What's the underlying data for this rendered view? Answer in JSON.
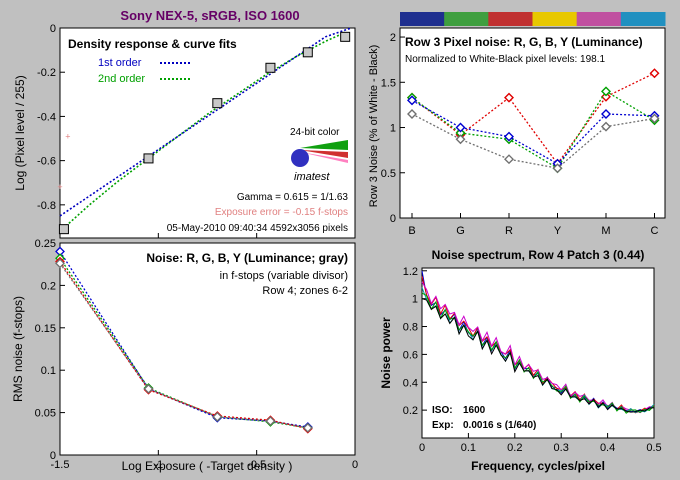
{
  "figure_title": "Sony NEX-5, sRGB, ISO 1600",
  "colors": {
    "background": "#c0c0c0",
    "plot_bg": "#ffffff",
    "title": "#660066",
    "red": "#e00000",
    "green": "#00a000",
    "blue": "#0000d0",
    "gray": "#707070",
    "pink": "#e08080",
    "magenta": "#cc00cc",
    "teal": "#00a0a0",
    "palette_bar": [
      "#1f2f8f",
      "#3f9f3f",
      "#c03030",
      "#e8c800",
      "#c050a0",
      "#2090c0"
    ]
  },
  "chart_data": [
    {
      "id": "density",
      "type": "scatter",
      "title": "Density response & curve fits",
      "ylabel": "Log (Pixel level / 255)",
      "xlim": [
        -1.5,
        0
      ],
      "ylim": [
        -0.95,
        0
      ],
      "yticks": [
        0,
        -0.2,
        -0.4,
        -0.6,
        -0.8
      ],
      "ytick_labels": [
        "0",
        "-0.2",
        "-0.4",
        "-0.6",
        "-0.8"
      ],
      "legend": [
        {
          "label": "1st order",
          "color": "#0000c0"
        },
        {
          "label": "2nd order",
          "color": "#00a000"
        }
      ],
      "fit_1st": {
        "x": [
          -1.5,
          -1.35,
          -1.2,
          -1.05,
          -0.9,
          -0.75,
          -0.6,
          -0.45,
          -0.3,
          -0.15,
          -0.02
        ],
        "y": [
          -0.85,
          -0.76,
          -0.67,
          -0.58,
          -0.49,
          -0.4,
          -0.31,
          -0.22,
          -0.13,
          -0.04,
          0.0
        ]
      },
      "fit_2nd": {
        "x": [
          -1.5,
          -1.35,
          -1.2,
          -1.05,
          -0.9,
          -0.75,
          -0.6,
          -0.45,
          -0.3,
          -0.15,
          -0.05
        ],
        "y": [
          -0.92,
          -0.8,
          -0.69,
          -0.59,
          -0.49,
          -0.39,
          -0.3,
          -0.21,
          -0.13,
          -0.06,
          -0.02
        ]
      },
      "points_x": [
        -1.48,
        -1.05,
        -0.7,
        -0.43,
        -0.24,
        -0.05
      ],
      "points_y": [
        -0.91,
        -0.59,
        -0.34,
        -0.18,
        -0.11,
        -0.04
      ],
      "pink_points_x": [
        -1.5,
        -1.46,
        -1.05,
        -0.7,
        -0.43,
        -0.24,
        -0.05
      ],
      "pink_points_y": [
        -0.72,
        -0.49,
        -0.6,
        -0.35,
        -0.18,
        -0.11,
        -0.03
      ],
      "badge_text": "24-bit color",
      "logo_text": "imatest",
      "gamma_text": "Gamma = 0.615 = 1/1.63",
      "exposure_text": "Exposure error = -0.15 f-stops",
      "date_text": "05-May-2010 09:40:34   4592x3056 pixels"
    },
    {
      "id": "row3",
      "type": "line",
      "title": "Row 3 Pixel noise: R, G, B, Y (Luminance)",
      "subtitle": "Normalized to White-Black pixel levels: 198.1",
      "ylabel": "Row 3 Noise (% of White - Black)",
      "categories": [
        "B",
        "G",
        "R",
        "Y",
        "M",
        "C"
      ],
      "ylim": [
        0,
        2.1
      ],
      "yticks": [
        0,
        0.5,
        1,
        1.5,
        2
      ],
      "ytick_labels": [
        "0",
        "0.5",
        "1",
        "1.5",
        "2"
      ],
      "series": [
        {
          "color": "#e00000",
          "values": [
            1.33,
            0.92,
            1.33,
            0.6,
            1.34,
            1.6
          ]
        },
        {
          "color": "#00a000",
          "values": [
            1.33,
            0.94,
            0.87,
            0.55,
            1.4,
            1.08
          ]
        },
        {
          "color": "#0000d0",
          "values": [
            1.3,
            1.0,
            0.9,
            0.6,
            1.15,
            1.13
          ]
        },
        {
          "color": "#707070",
          "values": [
            1.15,
            0.87,
            0.65,
            0.55,
            1.01,
            1.1
          ]
        }
      ]
    },
    {
      "id": "rmsnoise",
      "type": "line",
      "title": "Noise: R, G, B, Y (Luminance; gray)",
      "note1": "in f-stops (variable divisor)",
      "note2": "Row 4; zones 6-2",
      "ylabel": "RMS noise (f-stops)",
      "xlabel": "Log Exposure ( -Target density )",
      "xlim": [
        -1.5,
        0
      ],
      "ylim": [
        0,
        0.25
      ],
      "xticks": [
        -1.5,
        -1,
        -0.5,
        0
      ],
      "xtick_labels": [
        "-1.5",
        "-1",
        "-0.5",
        "0"
      ],
      "yticks": [
        0,
        0.05,
        0.1,
        0.15,
        0.2,
        0.25
      ],
      "ytick_labels": [
        "0",
        "0.05",
        "0.1",
        "0.15",
        "0.2",
        "0.25"
      ],
      "x": [
        -1.5,
        -1.05,
        -0.7,
        -0.43,
        -0.24
      ],
      "series": [
        {
          "color": "#0000d0",
          "values": [
            0.24,
            0.078,
            0.044,
            0.04,
            0.033
          ]
        },
        {
          "color": "#00a000",
          "values": [
            0.232,
            0.079,
            0.045,
            0.039,
            0.032
          ]
        },
        {
          "color": "#e00000",
          "values": [
            0.228,
            0.077,
            0.046,
            0.041,
            0.031
          ]
        },
        {
          "color": "#707070",
          "values": [
            0.226,
            0.078,
            0.045,
            0.04,
            0.032
          ]
        }
      ]
    },
    {
      "id": "spectrum",
      "type": "line",
      "title": "Noise spectrum, Row 4 Patch 3 (0.44)",
      "ylabel": "Noise power",
      "xlabel": "Frequency, cycles/pixel",
      "xlim": [
        0,
        0.5
      ],
      "ylim": [
        0,
        1.22
      ],
      "xticks": [
        0,
        0.1,
        0.2,
        0.3,
        0.4,
        0.5
      ],
      "xtick_labels": [
        "0",
        "0.1",
        "0.2",
        "0.3",
        "0.4",
        "0.5"
      ],
      "yticks": [
        0.2,
        0.4,
        0.6,
        0.8,
        1,
        1.2
      ],
      "ytick_labels": [
        "0.2",
        "0.4",
        "0.6",
        "0.8",
        "1",
        "1.2"
      ],
      "x": [
        0,
        0.01,
        0.02,
        0.03,
        0.04,
        0.05,
        0.06,
        0.07,
        0.08,
        0.09,
        0.1,
        0.11,
        0.12,
        0.13,
        0.14,
        0.15,
        0.16,
        0.17,
        0.18,
        0.19,
        0.2,
        0.21,
        0.22,
        0.23,
        0.24,
        0.25,
        0.26,
        0.27,
        0.28,
        0.29,
        0.3,
        0.31,
        0.32,
        0.33,
        0.34,
        0.35,
        0.36,
        0.37,
        0.38,
        0.39,
        0.4,
        0.41,
        0.42,
        0.43,
        0.44,
        0.45,
        0.46,
        0.47,
        0.48,
        0.49,
        0.5
      ],
      "base": [
        0.96,
        1.01,
        0.93,
        0.97,
        0.87,
        0.92,
        0.84,
        0.87,
        0.77,
        0.82,
        0.76,
        0.72,
        0.77,
        0.66,
        0.71,
        0.63,
        0.68,
        0.6,
        0.57,
        0.62,
        0.5,
        0.55,
        0.48,
        0.5,
        0.44,
        0.47,
        0.39,
        0.42,
        0.37,
        0.35,
        0.33,
        0.36,
        0.29,
        0.31,
        0.27,
        0.3,
        0.25,
        0.27,
        0.23,
        0.25,
        0.22,
        0.24,
        0.2,
        0.22,
        0.19,
        0.2,
        0.19,
        0.19,
        0.2,
        0.21,
        0.23
      ],
      "series": [
        {
          "color": "#0000d0",
          "offset": 0.01
        },
        {
          "color": "#e00000",
          "offset": 0.03
        },
        {
          "color": "#cc00cc",
          "offset": 0.05
        },
        {
          "color": "#00a0a0",
          "offset": -0.01
        },
        {
          "color": "#00a000",
          "offset": 0.0
        },
        {
          "color": "#000000",
          "offset": -0.02
        }
      ],
      "iso_label": "ISO:",
      "iso_value": "1600",
      "exp_label": "Exp:",
      "exp_value": "0.0016 s  (1/640)"
    }
  ]
}
